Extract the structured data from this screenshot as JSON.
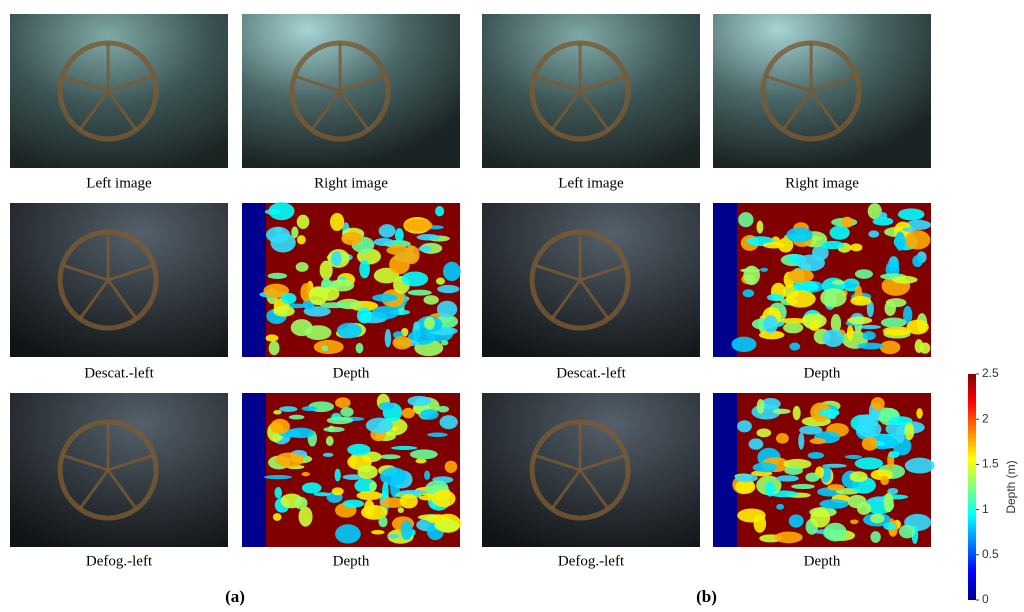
{
  "panels": [
    {
      "label": "(a)",
      "captions": [
        [
          "Left image",
          "Right image"
        ],
        [
          "Descat.-left",
          "Depth"
        ],
        [
          "Defog.-left",
          "Depth"
        ]
      ]
    },
    {
      "label": "(b)",
      "captions": [
        [
          "Left image",
          "Right image"
        ],
        [
          "Descat.-left",
          "Depth"
        ],
        [
          "Defog.-left",
          "Depth"
        ]
      ]
    }
  ],
  "colorbar": {
    "label": "Depth (m)",
    "lim": [
      0,
      2.5
    ],
    "ticks": [
      0,
      0.5,
      1,
      1.5,
      2,
      2.5
    ]
  }
}
